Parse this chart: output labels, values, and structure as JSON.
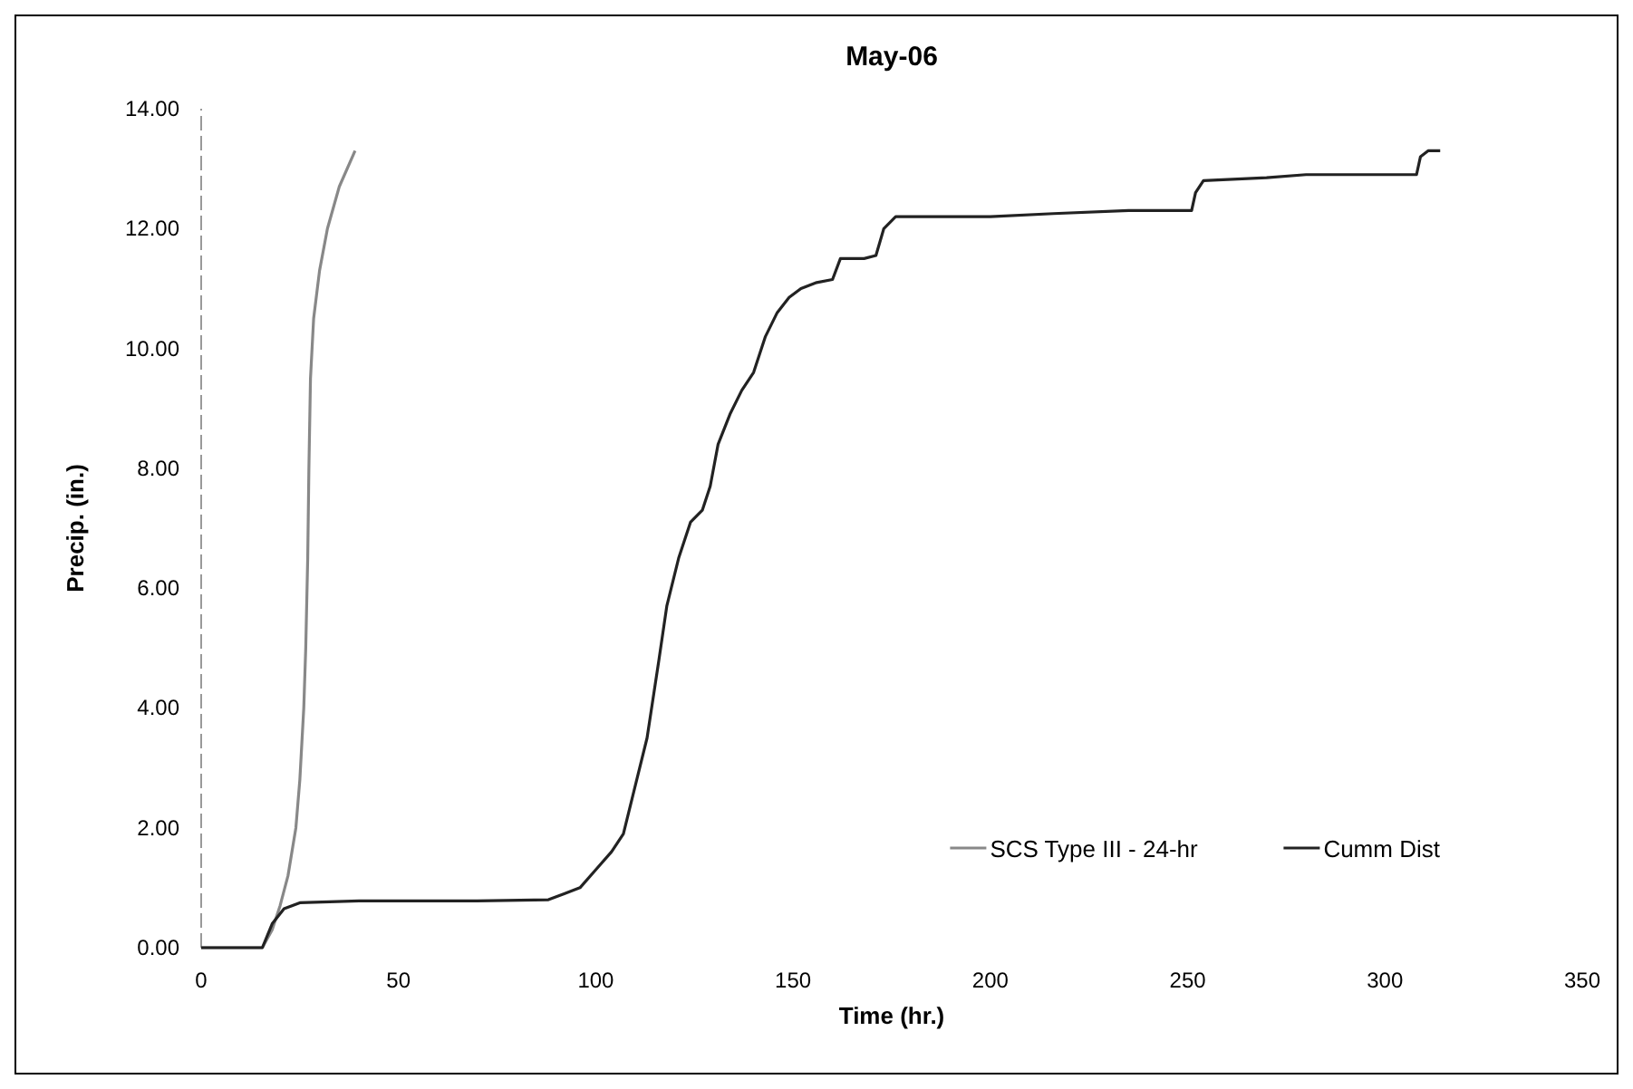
{
  "chart_data": {
    "type": "line",
    "title": "May-06",
    "xlabel": "Time (hr.)",
    "ylabel": "Precip. (in.)",
    "xlim": [
      0,
      350
    ],
    "xticks": [
      0,
      50,
      100,
      150,
      200,
      250,
      300,
      350
    ],
    "ylim": [
      0,
      14
    ],
    "yticks": [
      {
        "value": 0,
        "label": "0.00"
      },
      {
        "value": 2,
        "label": "2.00"
      },
      {
        "value": 4,
        "label": "4.00"
      },
      {
        "value": 6,
        "label": "6.00"
      },
      {
        "value": 8,
        "label": "8.00"
      },
      {
        "value": 10,
        "label": "10.00"
      },
      {
        "value": 12,
        "label": "12.00"
      },
      {
        "value": 14,
        "label": "14.00"
      }
    ],
    "grid": false,
    "legend": "bottom right",
    "marker": "none",
    "line_style": "solid",
    "series": [
      {
        "name": "SCS Type III - 24-hr",
        "color": "#888888",
        "x": [
          0,
          15.5,
          18,
          20,
          22,
          24,
          25,
          26,
          26.5,
          27,
          27.3,
          27.7,
          28.5,
          30,
          32,
          35,
          39
        ],
        "values": [
          0,
          0,
          0.3,
          0.7,
          1.2,
          2,
          2.8,
          4,
          5,
          6.5,
          8,
          9.5,
          10.5,
          11.3,
          12,
          12.7,
          13.3
        ]
      },
      {
        "name": "Cumm Dist",
        "color": "#222222",
        "x": [
          0,
          15.5,
          18,
          21,
          25,
          40,
          70,
          88,
          92,
          96,
          100,
          104,
          107,
          110,
          113,
          116,
          118,
          121,
          124,
          127,
          129,
          131,
          134,
          137,
          140,
          143,
          146,
          149,
          152,
          156,
          160,
          162,
          168,
          171,
          173,
          176,
          200,
          216,
          235,
          251,
          252,
          254,
          270,
          280,
          308,
          309,
          311,
          314
        ],
        "values": [
          0,
          0,
          0.4,
          0.65,
          0.75,
          0.78,
          0.78,
          0.8,
          0.9,
          1.0,
          1.3,
          1.6,
          1.9,
          2.7,
          3.5,
          4.8,
          5.7,
          6.5,
          7.1,
          7.3,
          7.7,
          8.4,
          8.9,
          9.3,
          9.6,
          10.2,
          10.6,
          10.85,
          11.0,
          11.1,
          11.15,
          11.5,
          11.5,
          11.55,
          12.0,
          12.2,
          12.2,
          12.25,
          12.3,
          12.3,
          12.6,
          12.8,
          12.85,
          12.9,
          12.9,
          13.2,
          13.3,
          13.3
        ]
      }
    ]
  }
}
